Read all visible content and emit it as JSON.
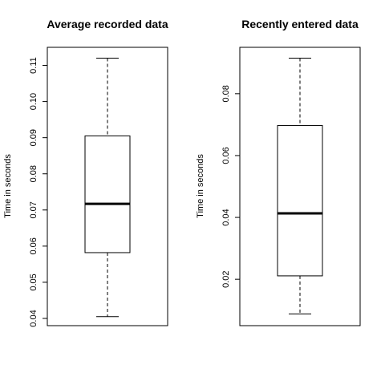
{
  "chart_data": [
    {
      "type": "boxplot",
      "title": "Average recorded data",
      "ylabel": "Time in seconds",
      "ylim": [
        0.038,
        0.115
      ],
      "yticks": [
        "0.04",
        "0.05",
        "0.06",
        "0.07",
        "0.08",
        "0.09",
        "0.10",
        "0.11"
      ],
      "box": {
        "min": 0.0405,
        "q1": 0.0582,
        "median": 0.0717,
        "q3": 0.0905,
        "max": 0.112
      }
    },
    {
      "type": "boxplot",
      "title": "Recently entered data",
      "ylabel": "Time in seconds",
      "ylim": [
        0.005,
        0.095
      ],
      "yticks": [
        "0.02",
        "0.04",
        "0.06",
        "0.08"
      ],
      "box": {
        "min": 0.0088,
        "q1": 0.0211,
        "median": 0.0413,
        "q3": 0.0697,
        "max": 0.0915
      }
    }
  ]
}
